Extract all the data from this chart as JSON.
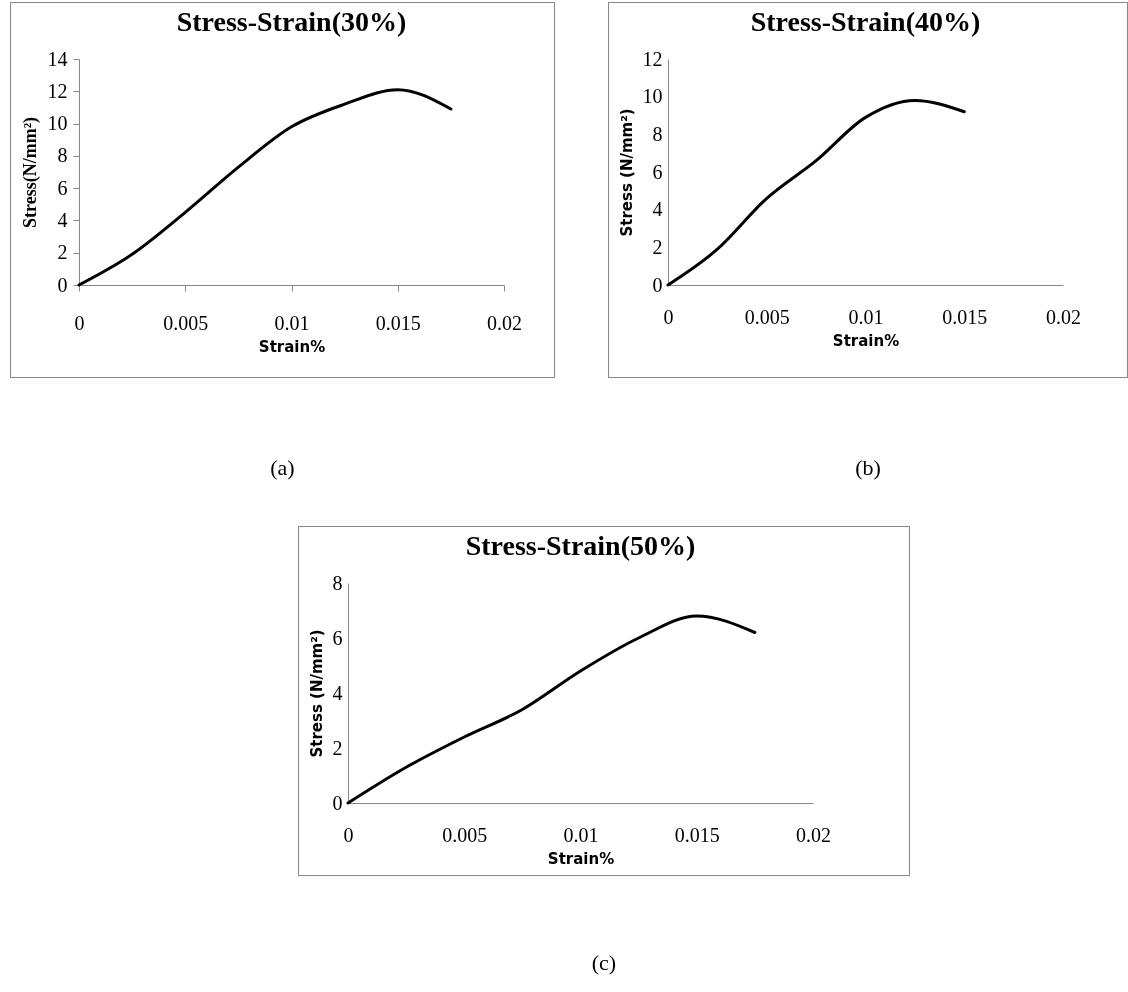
{
  "chart_data": [
    {
      "type": "line",
      "title": "Stress-Strain(30%)",
      "xlabel": "Strain%",
      "ylabel": "Stress(N/mm²)",
      "x": [
        0,
        0.0025,
        0.005,
        0.0075,
        0.01,
        0.0125,
        0.015,
        0.0175
      ],
      "series": [
        {
          "color": "#000000",
          "values": [
            0,
            1.9,
            4.5,
            7.3,
            9.8,
            11.2,
            12.1,
            10.9
          ]
        }
      ],
      "xlim": [
        0,
        0.02
      ],
      "xticks": [
        0,
        0.005,
        0.01,
        0.015,
        0.02
      ],
      "ylim": [
        0,
        14
      ],
      "yticks": [
        0,
        2,
        4,
        6,
        8,
        10,
        12,
        14
      ],
      "annotations": [
        "(a)"
      ]
    },
    {
      "type": "line",
      "title": "Stress-Strain(40%)",
      "xlabel": "Strain%",
      "ylabel": "Stress (N/mm²)",
      "x": [
        0,
        0.0025,
        0.005,
        0.0075,
        0.01,
        0.0125,
        0.015
      ],
      "series": [
        {
          "color": "#000000",
          "values": [
            0,
            1.9,
            4.6,
            6.6,
            8.9,
            9.8,
            9.2
          ]
        }
      ],
      "xlim": [
        0,
        0.02
      ],
      "xticks": [
        0,
        0.005,
        0.01,
        0.015,
        0.02
      ],
      "ylim": [
        0,
        12
      ],
      "yticks": [
        0,
        2,
        4,
        6,
        8,
        10,
        12
      ],
      "annotations": [
        "(b)"
      ]
    },
    {
      "type": "line",
      "title": "Stress-Strain(50%)",
      "xlabel": "Strain%",
      "ylabel": "Stress (N/mm²)",
      "x": [
        0,
        0.0025,
        0.005,
        0.0075,
        0.01,
        0.0125,
        0.015,
        0.0175
      ],
      "series": [
        {
          "color": "#000000",
          "values": [
            0,
            1.3,
            2.4,
            3.4,
            4.8,
            6.0,
            6.8,
            6.2
          ]
        }
      ],
      "xlim": [
        0,
        0.02
      ],
      "xticks": [
        0,
        0.005,
        0.01,
        0.015,
        0.02
      ],
      "ylim": [
        0,
        8
      ],
      "yticks": [
        0,
        2,
        4,
        6,
        8
      ],
      "annotations": [
        "(c)"
      ]
    }
  ]
}
